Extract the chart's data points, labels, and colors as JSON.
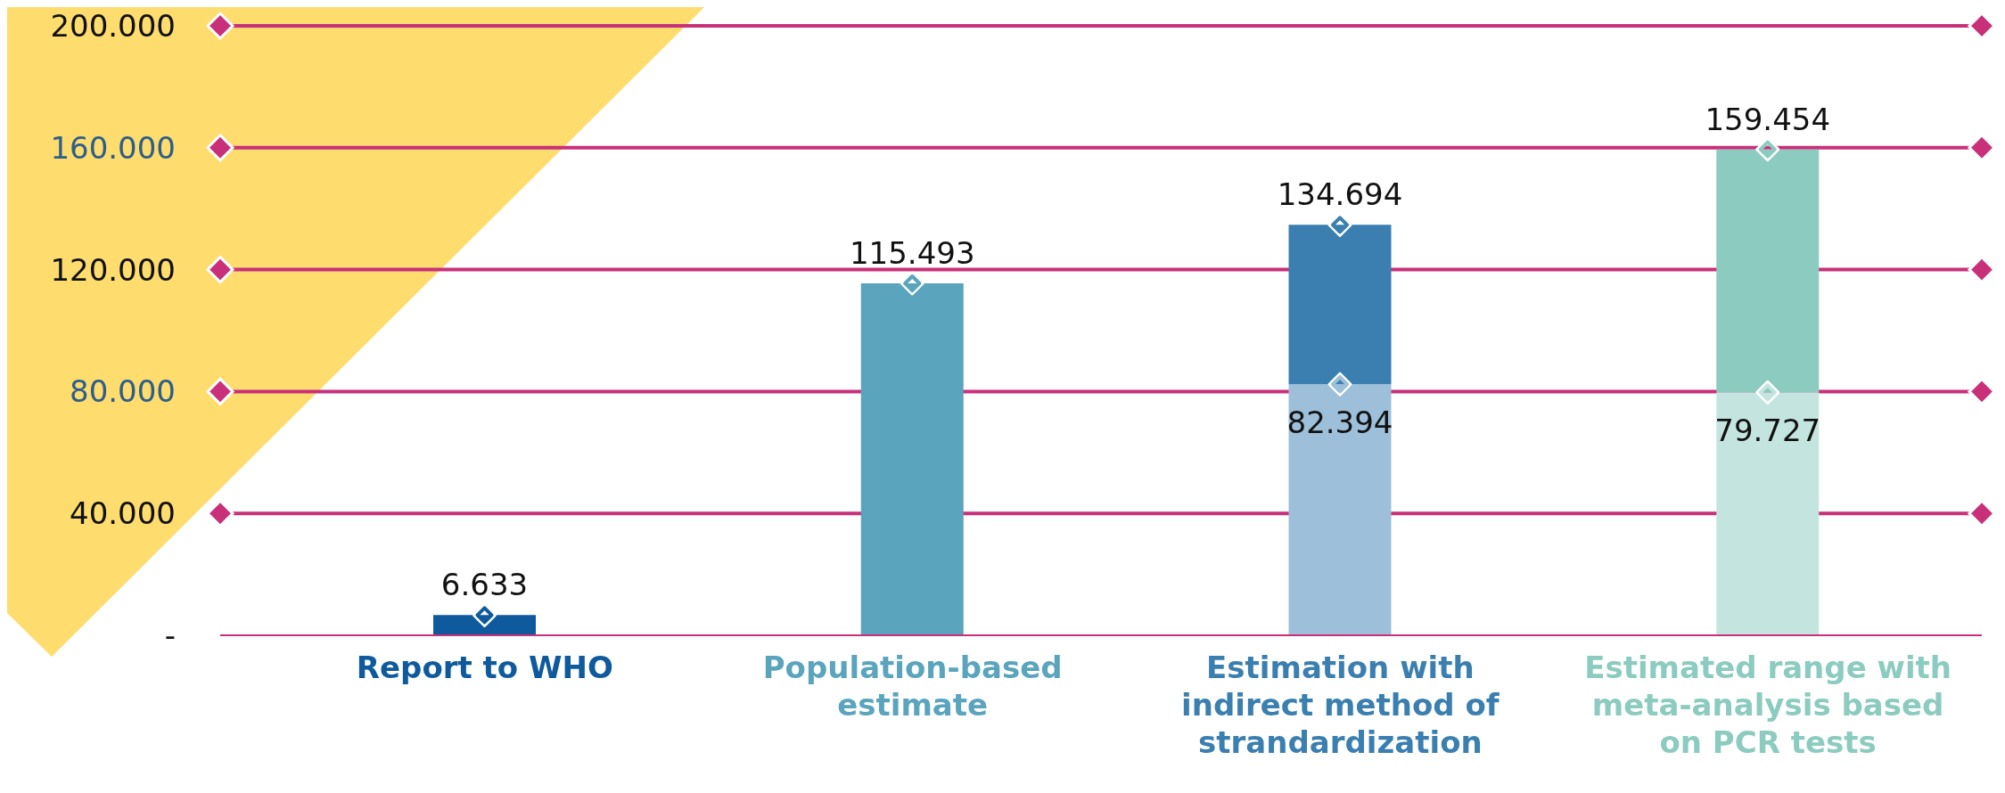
{
  "chart_data": {
    "type": "bar",
    "stacked": true,
    "categories": [
      "Report to WHO",
      "Population-based estimate",
      "Estimation with indirect method of strandardization",
      "Estimated range with meta-analysis based on PCR tests"
    ],
    "series": [
      {
        "colors": [
          "#0f5a9c",
          "#5aa4bd",
          "#9dbfd9",
          "#c4e5df"
        ],
        "values": [
          6633,
          115493,
          82394,
          79727
        ],
        "value_labels": [
          null,
          null,
          "82.394",
          "79.727"
        ]
      },
      {
        "colors": [
          "#0f5a9c",
          "#5aa4bd",
          "#3a7fb0",
          "#8ccbbf"
        ],
        "values": [
          null,
          null,
          52300,
          79727
        ]
      }
    ],
    "totals": [
      "6.633",
      "115.493",
      "134.694",
      "159.454"
    ],
    "ylim": [
      0,
      200000
    ],
    "yticks": [
      {
        "value": 0,
        "label": "-"
      },
      {
        "value": 40000,
        "label": "40.000"
      },
      {
        "value": 80000,
        "label": "80.000"
      },
      {
        "value": 120000,
        "label": "120.000"
      },
      {
        "value": 160000,
        "label": "160.000"
      },
      {
        "value": 200000,
        "label": "200.000"
      }
    ],
    "grid": "y",
    "marker": "diamond",
    "legend": false
  }
}
